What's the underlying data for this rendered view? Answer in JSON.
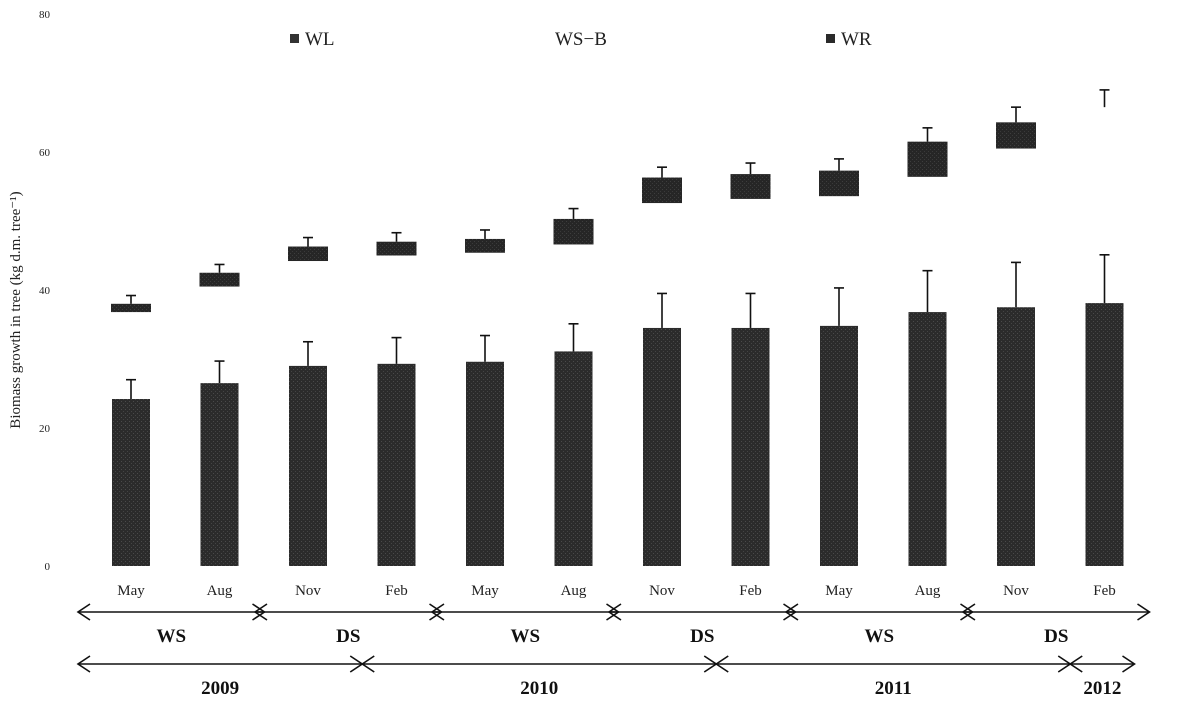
{
  "chart_data": {
    "type": "bar",
    "ylabel": "Biomass growth in tree (kg d.m. tree⁻¹)",
    "ylim": [
      0,
      80
    ],
    "yticks": [
      {
        "value": 0,
        "label": "0"
      },
      {
        "value": 20,
        "label": "20"
      },
      {
        "value": 40,
        "label": "40"
      },
      {
        "value": 60,
        "label": "60"
      },
      {
        "value": 80,
        "label": "80"
      }
    ],
    "grid": false,
    "legend_position": "top",
    "categories": [
      "May",
      "Aug",
      "Nov",
      "Feb",
      "May",
      "Aug",
      "Nov",
      "Feb",
      "May",
      "Aug",
      "Nov",
      "Feb"
    ],
    "series": [
      {
        "name": "WL",
        "color": "#333333",
        "values": [
          24.2,
          26.5,
          29.0,
          29.3,
          29.6,
          31.1,
          34.5,
          34.5,
          34.8,
          36.8,
          37.5,
          38.1
        ],
        "errors": [
          2.8,
          3.2,
          3.5,
          3.8,
          3.8,
          4.0,
          5.0,
          5.0,
          5.5,
          6.0,
          6.5,
          7.0
        ]
      },
      {
        "name": "WS−B",
        "color": "#555555",
        "values": [
          36.8,
          40.5,
          44.2,
          45.0,
          45.4,
          46.6,
          52.6,
          53.2,
          53.6,
          56.4,
          60.5,
          66.5
        ],
        "errors": [
          1.0,
          1.2,
          1.2,
          1.2,
          1.3,
          1.5,
          1.5,
          1.8,
          2.2,
          2.4,
          2.8,
          3.2
        ]
      },
      {
        "name": "WR",
        "color": "#2a2a2a",
        "values": [
          38.0,
          42.5,
          46.3,
          47.0,
          47.4,
          50.3,
          56.3,
          56.8,
          57.3,
          61.5,
          64.3,
          66.5
        ],
        "errors": [
          1.2,
          1.2,
          1.3,
          1.3,
          1.3,
          1.5,
          1.5,
          1.6,
          1.7,
          2.0,
          2.2,
          2.5
        ]
      }
    ],
    "season_spans": [
      {
        "label": "WS",
        "start": 0,
        "end": 1
      },
      {
        "label": "DS",
        "start": 2,
        "end": 3
      },
      {
        "label": "WS",
        "start": 4,
        "end": 5
      },
      {
        "label": "DS",
        "start": 6,
        "end": 7
      },
      {
        "label": "WS",
        "start": 8,
        "end": 9
      },
      {
        "label": "DS",
        "start": 10,
        "end": 11
      }
    ],
    "year_spans": [
      {
        "label": "2009",
        "start": 0,
        "end": 2.5
      },
      {
        "label": "2010",
        "start": 2.5,
        "end": 6.5
      },
      {
        "label": "2011",
        "start": 6.5,
        "end": 10.5
      },
      {
        "label": "2012",
        "start": 10.5,
        "end": 11
      }
    ]
  }
}
